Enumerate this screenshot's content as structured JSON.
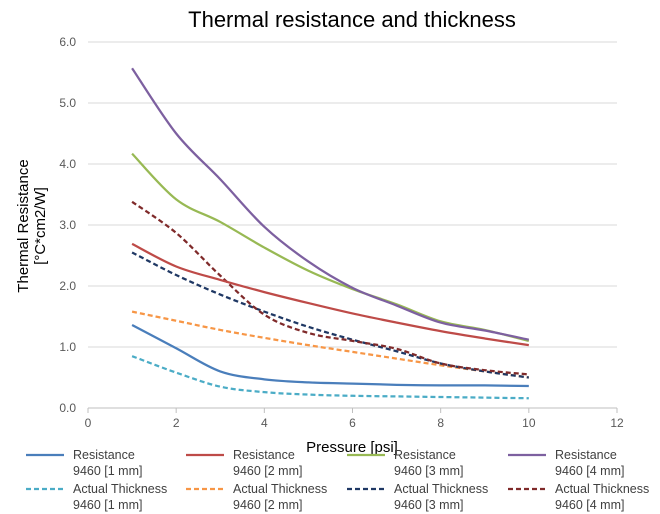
{
  "chart_data": {
    "type": "line",
    "title": "Thermal resistance and thickness",
    "xlabel": "Pressure [psi]",
    "ylabel_line1": "Thermal Resistance",
    "ylabel_line2": "[°C*cm2/W]",
    "xlim": [
      0,
      12
    ],
    "ylim": [
      0,
      6
    ],
    "x_ticks": [
      0,
      2,
      4,
      6,
      8,
      10,
      12
    ],
    "x_tick_labels": [
      "0",
      "2",
      "4",
      "6",
      "8",
      "10",
      "12"
    ],
    "y_ticks": [
      0,
      1,
      2,
      3,
      4,
      5,
      6
    ],
    "y_tick_labels": [
      "0.0",
      "1.0",
      "2.0",
      "3.0",
      "4.0",
      "5.0",
      "6.0"
    ],
    "grid": "horizontal",
    "legend_position": "bottom",
    "series": [
      {
        "name_line1": "Resistance",
        "name_line2": "9460 [1 mm]",
        "color": "#4a7ebb",
        "dash": "solid",
        "x": [
          1,
          2,
          3,
          4,
          5,
          6,
          7,
          8,
          9,
          10
        ],
        "y": [
          1.36,
          0.98,
          0.6,
          0.47,
          0.42,
          0.4,
          0.38,
          0.37,
          0.37,
          0.36
        ]
      },
      {
        "name_line1": "Resistance",
        "name_line2": "9460 [2 mm]",
        "color": "#be4b48",
        "dash": "solid",
        "x": [
          1,
          2,
          3,
          4,
          5,
          6,
          7,
          8,
          9,
          10
        ],
        "y": [
          2.69,
          2.32,
          2.1,
          1.9,
          1.72,
          1.55,
          1.4,
          1.26,
          1.14,
          1.03
        ]
      },
      {
        "name_line1": "Resistance",
        "name_line2": "9460 [3 mm]",
        "color": "#98b954",
        "dash": "solid",
        "x": [
          1,
          2,
          3,
          4,
          5,
          6,
          7,
          8,
          9,
          10
        ],
        "y": [
          4.17,
          3.42,
          3.05,
          2.63,
          2.25,
          1.95,
          1.7,
          1.42,
          1.28,
          1.1
        ]
      },
      {
        "name_line1": "Resistance",
        "name_line2": "9460 [4 mm]",
        "color": "#7d60a0",
        "dash": "solid",
        "x": [
          1,
          2,
          3,
          4,
          5,
          6,
          7,
          8,
          9,
          10
        ],
        "y": [
          5.57,
          4.5,
          3.75,
          2.97,
          2.4,
          1.97,
          1.68,
          1.4,
          1.27,
          1.12
        ]
      },
      {
        "name_line1": "Actual Thickness",
        "name_line2": "9460 [1 mm]",
        "color": "#4bacc6",
        "dash": "dashed",
        "x": [
          1,
          2,
          3,
          4,
          5,
          6,
          7,
          8,
          9,
          10
        ],
        "y": [
          0.85,
          0.58,
          0.35,
          0.26,
          0.22,
          0.2,
          0.19,
          0.18,
          0.17,
          0.16
        ]
      },
      {
        "name_line1": "Actual Thickness",
        "name_line2": "9460 [2 mm]",
        "color": "#f79646",
        "dash": "dashed",
        "x": [
          1,
          2,
          3,
          4,
          5,
          6,
          7,
          8,
          9,
          10
        ],
        "y": [
          1.58,
          1.43,
          1.28,
          1.15,
          1.03,
          0.92,
          0.81,
          0.7,
          0.6,
          0.5
        ]
      },
      {
        "name_line1": "Actual Thickness",
        "name_line2": "9460 [3 mm]",
        "color": "#1f3864",
        "dash": "dashed",
        "x": [
          1,
          2,
          3,
          4,
          5,
          6,
          7,
          8,
          9,
          10
        ],
        "y": [
          2.55,
          2.18,
          1.86,
          1.58,
          1.33,
          1.12,
          0.93,
          0.73,
          0.6,
          0.5
        ]
      },
      {
        "name_line1": "Actual Thickness",
        "name_line2": "9460 [4 mm]",
        "color": "#7f2a2a",
        "dash": "dashed",
        "x": [
          1,
          2,
          3,
          4,
          5,
          6,
          7,
          8,
          9,
          10
        ],
        "y": [
          3.38,
          2.87,
          2.17,
          1.53,
          1.23,
          1.1,
          0.97,
          0.73,
          0.62,
          0.55
        ]
      }
    ]
  }
}
